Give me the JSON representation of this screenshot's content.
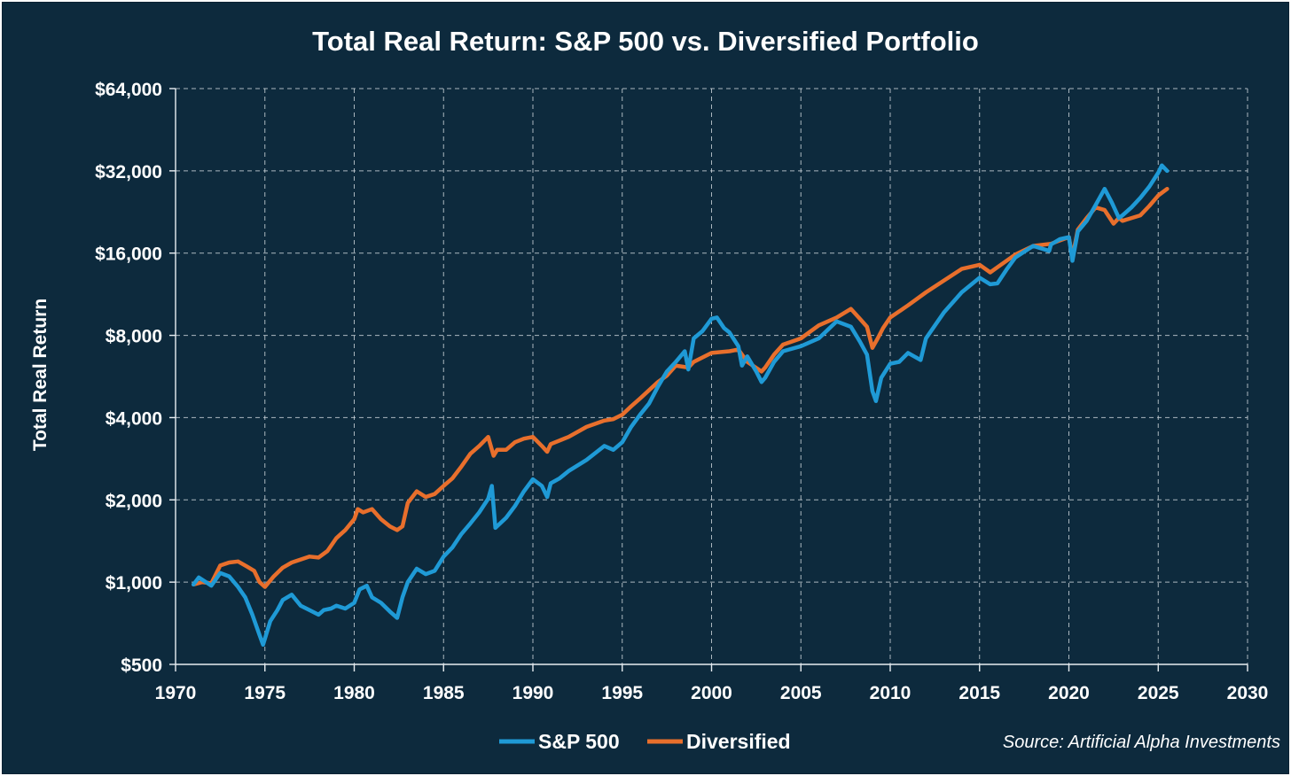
{
  "chart_data": {
    "type": "line",
    "title": "Total Real Return: S&P 500 vs. Diversified Portfolio",
    "ylabel": "Total Real Return",
    "xlabel": "",
    "y_scale": "log2",
    "ylim": [
      500,
      64000
    ],
    "xlim": [
      1970,
      2030
    ],
    "y_ticks": [
      500,
      1000,
      2000,
      4000,
      8000,
      16000,
      32000,
      64000
    ],
    "y_tick_labels": [
      "$500",
      "$1,000",
      "$2,000",
      "$4,000",
      "$8,000",
      "$16,000",
      "$32,000",
      "$64,000"
    ],
    "x_ticks": [
      1970,
      1975,
      1980,
      1985,
      1990,
      1995,
      2000,
      2005,
      2010,
      2015,
      2020,
      2025,
      2030
    ],
    "x_tick_labels": [
      "1970",
      "1975",
      "1980",
      "1985",
      "1990",
      "1995",
      "2000",
      "2005",
      "2010",
      "2015",
      "2020",
      "2025",
      "2030"
    ],
    "grid": true,
    "legend_position": "bottom-center",
    "source": "Source: Artificial Alpha Investments",
    "series": [
      {
        "name": "S&P 500",
        "color": "#1f9ad6",
        "x": [
          1971.0,
          1971.3,
          1971.7,
          1972.0,
          1972.5,
          1973.0,
          1973.5,
          1973.9,
          1974.3,
          1974.7,
          1974.9,
          1975.3,
          1975.7,
          1976.0,
          1976.5,
          1977.0,
          1977.5,
          1978.0,
          1978.3,
          1978.7,
          1979.0,
          1979.5,
          1980.0,
          1980.3,
          1980.7,
          1981.0,
          1981.5,
          1982.0,
          1982.4,
          1982.7,
          1983.0,
          1983.5,
          1984.0,
          1984.5,
          1985.0,
          1985.5,
          1986.0,
          1986.5,
          1987.0,
          1987.5,
          1987.7,
          1987.9,
          1988.5,
          1989.0,
          1989.5,
          1990.0,
          1990.5,
          1990.8,
          1991.0,
          1991.5,
          1992.0,
          1993.0,
          1994.0,
          1994.5,
          1995.0,
          1995.5,
          1996.0,
          1996.5,
          1997.0,
          1997.5,
          1998.0,
          1998.5,
          1998.7,
          1999.0,
          1999.5,
          2000.0,
          2000.3,
          2000.7,
          2001.0,
          2001.5,
          2001.7,
          2002.0,
          2002.5,
          2002.8,
          2003.0,
          2003.5,
          2004.0,
          2005.0,
          2006.0,
          2007.0,
          2007.8,
          2008.3,
          2008.7,
          2009.0,
          2009.2,
          2009.5,
          2010.0,
          2010.5,
          2011.0,
          2011.7,
          2012.0,
          2013.0,
          2014.0,
          2015.0,
          2015.6,
          2016.0,
          2016.5,
          2017.0,
          2018.0,
          2018.9,
          2019.0,
          2019.5,
          2020.0,
          2020.2,
          2020.5,
          2021.0,
          2021.5,
          2022.0,
          2022.4,
          2022.8,
          2023.0,
          2023.5,
          2024.0,
          2024.5,
          2025.0,
          2025.2,
          2025.5
        ],
        "values": [
          980,
          1040,
          1000,
          970,
          1080,
          1050,
          960,
          880,
          760,
          640,
          590,
          720,
          790,
          860,
          900,
          820,
          790,
          760,
          790,
          800,
          820,
          800,
          840,
          940,
          970,
          880,
          840,
          780,
          740,
          880,
          1000,
          1120,
          1070,
          1100,
          1240,
          1340,
          1500,
          1640,
          1800,
          2020,
          2250,
          1580,
          1720,
          1900,
          2150,
          2380,
          2250,
          2050,
          2300,
          2400,
          2550,
          2800,
          3150,
          3050,
          3250,
          3700,
          4100,
          4500,
          5200,
          5900,
          6400,
          7000,
          6000,
          7800,
          8300,
          9200,
          9300,
          8500,
          8200,
          7300,
          6200,
          6700,
          5900,
          5400,
          5600,
          6400,
          7000,
          7300,
          7800,
          9000,
          8600,
          7600,
          6800,
          5000,
          4600,
          5600,
          6300,
          6400,
          6900,
          6500,
          7800,
          9700,
          11500,
          13000,
          12300,
          12400,
          13900,
          15400,
          17000,
          16300,
          17200,
          18000,
          18300,
          15000,
          19200,
          21000,
          24000,
          27500,
          24500,
          21500,
          22000,
          23500,
          25500,
          28000,
          31500,
          33500,
          32000
        ]
      },
      {
        "name": "Diversified",
        "color": "#e86f2c",
        "x": [
          1971.0,
          1971.5,
          1972.0,
          1972.5,
          1973.0,
          1973.5,
          1974.0,
          1974.4,
          1974.7,
          1975.0,
          1975.5,
          1976.0,
          1976.5,
          1977.0,
          1977.5,
          1978.0,
          1978.5,
          1979.0,
          1979.5,
          1980.0,
          1980.2,
          1980.5,
          1981.0,
          1981.5,
          1982.0,
          1982.4,
          1982.7,
          1983.0,
          1983.5,
          1984.0,
          1984.5,
          1985.0,
          1985.5,
          1986.0,
          1986.5,
          1987.0,
          1987.5,
          1987.8,
          1988.0,
          1988.5,
          1989.0,
          1989.5,
          1990.0,
          1990.5,
          1990.8,
          1991.0,
          1992.0,
          1993.0,
          1994.0,
          1994.5,
          1995.0,
          1995.5,
          1996.0,
          1997.0,
          1997.5,
          1998.0,
          1998.7,
          1999.0,
          2000.0,
          2001.0,
          2001.5,
          2002.0,
          2002.8,
          2003.0,
          2003.5,
          2004.0,
          2005.0,
          2006.0,
          2007.0,
          2007.8,
          2008.3,
          2008.7,
          2009.0,
          2009.3,
          2009.6,
          2010.0,
          2011.0,
          2012.0,
          2013.0,
          2014.0,
          2015.0,
          2015.6,
          2016.0,
          2017.0,
          2018.0,
          2019.0,
          2020.0,
          2020.2,
          2020.5,
          2021.0,
          2021.5,
          2022.0,
          2022.5,
          2022.8,
          2023.0,
          2024.0,
          2024.5,
          2025.0,
          2025.5
        ],
        "values": [
          980,
          1000,
          990,
          1150,
          1180,
          1190,
          1140,
          1100,
          1000,
          960,
          1050,
          1130,
          1180,
          1210,
          1240,
          1230,
          1300,
          1450,
          1550,
          1700,
          1850,
          1800,
          1850,
          1700,
          1600,
          1550,
          1600,
          1950,
          2150,
          2050,
          2100,
          2250,
          2400,
          2650,
          2950,
          3150,
          3400,
          2900,
          3050,
          3050,
          3250,
          3350,
          3400,
          3150,
          3000,
          3200,
          3400,
          3700,
          3900,
          3950,
          4100,
          4400,
          4700,
          5400,
          5700,
          6200,
          6100,
          6400,
          6900,
          7000,
          7100,
          6400,
          5900,
          6100,
          6800,
          7400,
          7800,
          8700,
          9300,
          10000,
          9200,
          8600,
          7200,
          7800,
          8500,
          9300,
          10300,
          11500,
          12700,
          14000,
          14500,
          13600,
          14200,
          15800,
          17000,
          17300,
          18300,
          15500,
          19500,
          21500,
          23500,
          23000,
          20500,
          21500,
          21000,
          22000,
          23800,
          26000,
          27500
        ]
      }
    ]
  }
}
